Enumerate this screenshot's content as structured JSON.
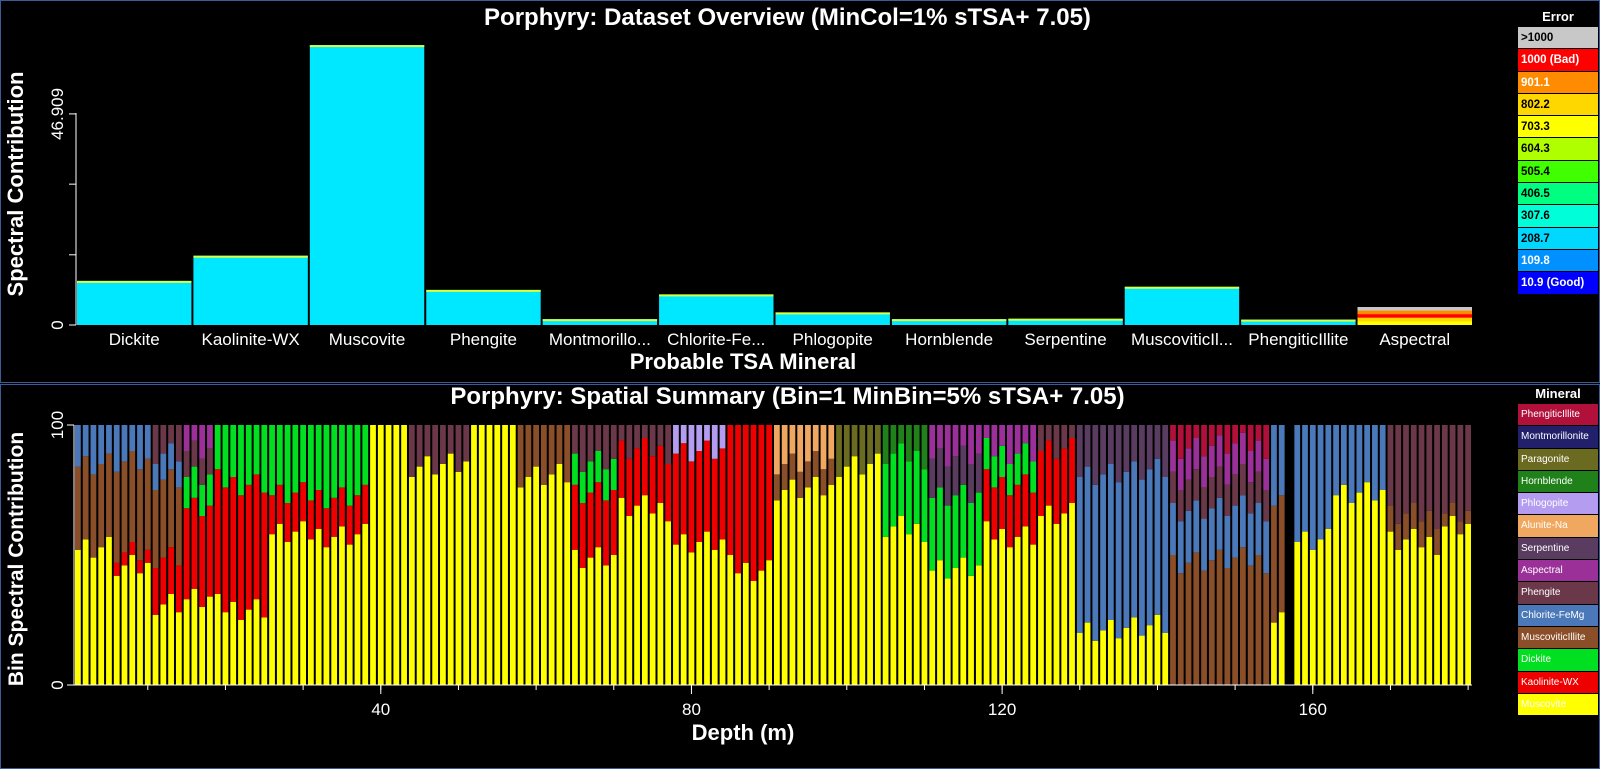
{
  "top": {
    "title": "Porphyry:  Dataset Overview  (MinCol=1%  sTSA+ 7.05)",
    "ylabel": "Spectral Contribution",
    "xlabel": "Probable TSA Mineral",
    "ytick_labels": [
      "0",
      "46.909"
    ],
    "legend_title": "Error",
    "legend": [
      {
        "label": ">1000",
        "bg": "#c8c8c8",
        "fg": "#000000"
      },
      {
        "label": "1000 (Bad)",
        "bg": "#ff0000",
        "fg": "#ffffff"
      },
      {
        "label": "901.1",
        "bg": "#ff8c00",
        "fg": "#ffffff"
      },
      {
        "label": "802.2",
        "bg": "#ffd700",
        "fg": "#000000"
      },
      {
        "label": "703.3",
        "bg": "#ffff00",
        "fg": "#000000"
      },
      {
        "label": "604.3",
        "bg": "#b0ff00",
        "fg": "#000000"
      },
      {
        "label": "505.4",
        "bg": "#40ff00",
        "fg": "#000000"
      },
      {
        "label": "406.5",
        "bg": "#00ff80",
        "fg": "#000000"
      },
      {
        "label": "307.6",
        "bg": "#00ffd8",
        "fg": "#000000"
      },
      {
        "label": "208.7",
        "bg": "#00d8ff",
        "fg": "#000000"
      },
      {
        "label": "109.8",
        "bg": "#0090ff",
        "fg": "#ffffff"
      },
      {
        "label": "10.9 (Good)",
        "bg": "#0000ff",
        "fg": "#ffffff"
      }
    ]
  },
  "bottom": {
    "title": "Porphyry:  Spatial Summary  (Bin=1  MinBin=5%  sTSA+ 7.05)",
    "ylabel": "Bin Spectral Contribution",
    "xlabel": "Depth (m)",
    "ytick_labels": [
      "0",
      "100"
    ],
    "xtick_labels": [
      "40",
      "80",
      "120",
      "160"
    ],
    "legend_title": "Mineral",
    "legend": [
      {
        "label": "PhengiticIllite",
        "bg": "#b0103a"
      },
      {
        "label": "Montmorillonite",
        "bg": "#22206a"
      },
      {
        "label": "Paragonite",
        "bg": "#6a6a20"
      },
      {
        "label": "Hornblende",
        "bg": "#20801a"
      },
      {
        "label": "Phlogopite",
        "bg": "#b49cf0"
      },
      {
        "label": "Alunite-Na",
        "bg": "#f0a860"
      },
      {
        "label": "Serpentine",
        "bg": "#5a3c60"
      },
      {
        "label": "Aspectral",
        "bg": "#9a3098"
      },
      {
        "label": "Phengite",
        "bg": "#6a3848"
      },
      {
        "label": "Chlorite-FeMg",
        "bg": "#4a78b8"
      },
      {
        "label": "MuscoviticIllite",
        "bg": "#8a4e28"
      },
      {
        "label": "Dickite",
        "bg": "#00e020"
      },
      {
        "label": "Kaolinite-WX",
        "bg": "#ee0000"
      },
      {
        "label": "Muscovite",
        "bg": "#ffff00"
      }
    ]
  },
  "chart_data": [
    {
      "type": "bar",
      "title": "Porphyry:  Dataset Overview  (MinCol=1%  sTSA+ 7.05)",
      "xlabel": "Probable TSA Mineral",
      "ylabel": "Spectral Contribution",
      "ylim": [
        0,
        62
      ],
      "yticks": [
        0,
        15.6,
        31.3,
        46.909
      ],
      "grid": false,
      "legend_placement": "right",
      "categories": [
        "Dickite",
        "Kaolinite-WX",
        "Muscovite",
        "Phengite",
        "Montmorillo...",
        "Chlorite-Fe...",
        "Phlogopite",
        "Hornblende",
        "Serpentine",
        "MuscoviticIl...",
        "PhengiticIllite",
        "Aspectral"
      ],
      "values": [
        9.8,
        15.4,
        62.2,
        7.8,
        1.3,
        6.8,
        2.8,
        1.3,
        1.4,
        8.5,
        1.2,
        4.0
      ],
      "bar_colors": [
        "#00e8ff",
        "#00e8ff",
        "#00e8ff",
        "#00e8ff",
        "#00e8ff",
        "#00e8ff",
        "#00e8ff",
        "#00e8ff",
        "#00e8ff",
        "#00e8ff",
        "#00e8ff",
        "#ffd700"
      ]
    },
    {
      "type": "bar",
      "stacked": true,
      "title": "Porphyry:  Spatial Summary  (Bin=1  MinBin=5%  sTSA+ 7.05)",
      "xlabel": "Depth (m)",
      "ylabel": "Bin Spectral Contribution",
      "xlim": [
        0.5,
        180.5
      ],
      "ylim": [
        0,
        100
      ],
      "xticks": [
        40,
        80,
        120,
        160
      ],
      "yticks": [
        0,
        100
      ],
      "grid": false,
      "legend_placement": "right",
      "series_order": [
        "Muscovite",
        "Kaolinite-WX",
        "Dickite",
        "MuscoviticIllite",
        "Chlorite-FeMg",
        "Phengite",
        "Aspectral",
        "Serpentine",
        "Alunite-Na",
        "Phlogopite",
        "Hornblende",
        "Paragonite",
        "Montmorillonite",
        "PhengiticIllite"
      ],
      "segments": [
        {
          "x": [
            1,
            5
          ],
          "parts": [
            [
              "Muscovite",
              53
            ],
            [
              "MuscoviticIllite",
              32
            ],
            [
              "Chlorite-FeMg",
              15
            ]
          ]
        },
        {
          "x": [
            6,
            10
          ],
          "parts": [
            [
              "Muscovite",
              45
            ],
            [
              "Kaolinite-WX",
              5
            ],
            [
              "MuscoviticIllite",
              35
            ],
            [
              "Chlorite-FeMg",
              15
            ]
          ]
        },
        {
          "x": [
            11,
            14
          ],
          "parts": [
            [
              "Muscovite",
              32
            ],
            [
              "Kaolinite-WX",
              18
            ],
            [
              "MuscoviticIllite",
              30
            ],
            [
              "Chlorite-FeMg",
              10
            ],
            [
              "Phengite",
              10
            ]
          ]
        },
        {
          "x": [
            15,
            18
          ],
          "parts": [
            [
              "Muscovite",
              33
            ],
            [
              "Kaolinite-WX",
              35
            ],
            [
              "Dickite",
              12
            ],
            [
              "Phengite",
              10
            ],
            [
              "Aspectral",
              10
            ]
          ]
        },
        {
          "x": [
            19,
            25
          ],
          "parts": [
            [
              "Muscovite",
              30
            ],
            [
              "Kaolinite-WX",
              48
            ],
            [
              "Dickite",
              22
            ]
          ]
        },
        {
          "x": [
            26,
            38
          ],
          "parts": [
            [
              "Muscovite",
              58
            ],
            [
              "Kaolinite-WX",
              15
            ],
            [
              "Dickite",
              27
            ]
          ]
        },
        {
          "x": [
            39,
            43
          ],
          "parts": [
            [
              "Muscovite",
              100
            ]
          ]
        },
        {
          "x": [
            44,
            51
          ],
          "parts": [
            [
              "Muscovite",
              85
            ],
            [
              "Phengite",
              15
            ]
          ]
        },
        {
          "x": [
            52,
            57
          ],
          "parts": [
            [
              "Muscovite",
              100
            ]
          ]
        },
        {
          "x": [
            58,
            64
          ],
          "parts": [
            [
              "Muscovite",
              80
            ],
            [
              "MuscoviticIllite",
              20
            ]
          ]
        },
        {
          "x": [
            65,
            70
          ],
          "parts": [
            [
              "Muscovite",
              50
            ],
            [
              "Kaolinite-WX",
              25
            ],
            [
              "Dickite",
              12
            ],
            [
              "Phengite",
              13
            ]
          ]
        },
        {
          "x": [
            71,
            77
          ],
          "parts": [
            [
              "Muscovite",
              68
            ],
            [
              "Kaolinite-WX",
              22
            ],
            [
              "Phengite",
              10
            ]
          ]
        },
        {
          "x": [
            78,
            84
          ],
          "parts": [
            [
              "Muscovite",
              55
            ],
            [
              "Kaolinite-WX",
              35
            ],
            [
              "Phlogopite",
              10
            ]
          ]
        },
        {
          "x": [
            85,
            90
          ],
          "parts": [
            [
              "Muscovite",
              45
            ],
            [
              "Kaolinite-WX",
              55
            ]
          ]
        },
        {
          "x": [
            91,
            98
          ],
          "parts": [
            [
              "Muscovite",
              75
            ],
            [
              "MuscoviticIllite",
              10
            ],
            [
              "Alunite-Na",
              15
            ]
          ]
        },
        {
          "x": [
            99,
            104
          ],
          "parts": [
            [
              "Muscovite",
              85
            ],
            [
              "Paragonite",
              15
            ]
          ]
        },
        {
          "x": [
            105,
            110
          ],
          "parts": [
            [
              "Muscovite",
              60
            ],
            [
              "Dickite",
              28
            ],
            [
              "Hornblende",
              12
            ]
          ]
        },
        {
          "x": [
            111,
            117
          ],
          "parts": [
            [
              "Muscovite",
              45
            ],
            [
              "Dickite",
              28
            ],
            [
              "Serpentine",
              15
            ],
            [
              "Aspectral",
              12
            ]
          ]
        },
        {
          "x": [
            118,
            124
          ],
          "parts": [
            [
              "Muscovite",
              58
            ],
            [
              "Kaolinite-WX",
              20
            ],
            [
              "Dickite",
              12
            ],
            [
              "Aspectral",
              10
            ]
          ]
        },
        {
          "x": [
            125,
            129
          ],
          "parts": [
            [
              "Muscovite",
              65
            ],
            [
              "Kaolinite-WX",
              25
            ],
            [
              "Phengite",
              10
            ]
          ]
        },
        {
          "x": [
            130,
            141
          ],
          "parts": [
            [
              "Muscovite",
              22
            ],
            [
              "Chlorite-FeMg",
              60
            ],
            [
              "Serpentine",
              18
            ]
          ]
        },
        {
          "x": [
            142,
            154
          ],
          "parts": [
            [
              "MuscoviticIllite",
              48
            ],
            [
              "Chlorite-FeMg",
              20
            ],
            [
              "Phengite",
              12
            ],
            [
              "Aspectral",
              12
            ],
            [
              "PhengiticIllite",
              8
            ]
          ]
        },
        {
          "x": [
            155,
            156
          ],
          "parts": [
            [
              "Muscovite",
              25
            ],
            [
              "MuscoviticIllite",
              45
            ],
            [
              "Chlorite-FeMg",
              30
            ]
          ]
        },
        {
          "x": [
            158,
            162
          ],
          "parts": [
            [
              "Muscovite",
              55
            ],
            [
              "Chlorite-FeMg",
              45
            ]
          ]
        },
        {
          "x": [
            163,
            169
          ],
          "parts": [
            [
              "Muscovite",
              75
            ],
            [
              "Chlorite-FeMg",
              25
            ]
          ]
        },
        {
          "x": [
            170,
            176
          ],
          "parts": [
            [
              "Muscovite",
              55
            ],
            [
              "MuscoviticIllite",
              10
            ],
            [
              "Phengite",
              35
            ]
          ]
        },
        {
          "x": [
            177,
            180
          ],
          "parts": [
            [
              "Muscovite",
              62
            ],
            [
              "MuscoviticIllite",
              5
            ],
            [
              "Phengite",
              33
            ]
          ]
        }
      ]
    }
  ]
}
